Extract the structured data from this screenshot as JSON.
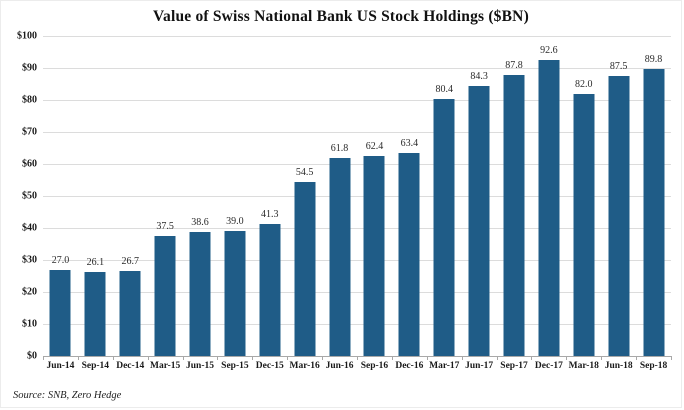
{
  "title": "Value of Swiss National Bank US Stock Holdings ($BN)",
  "source_note": "Source: SNB, Zero Hedge",
  "colors": {
    "bar": "#1f5c87",
    "gridline": "#dcdcdc",
    "baseline": "#a8a8a8",
    "text": "#1a1a1a"
  },
  "chart_data": {
    "type": "bar",
    "title": "Value of Swiss National Bank US Stock Holdings ($BN)",
    "categories": [
      "Jun-14",
      "Sep-14",
      "Dec-14",
      "Mar-15",
      "Jun-15",
      "Sep-15",
      "Dec-15",
      "Mar-16",
      "Jun-16",
      "Sep-16",
      "Dec-16",
      "Mar-17",
      "Jun-17",
      "Sep-17",
      "Dec-17",
      "Mar-18",
      "Jun-18",
      "Sep-18"
    ],
    "values": [
      27.0,
      26.1,
      26.7,
      37.5,
      38.6,
      39.0,
      41.3,
      54.5,
      61.8,
      62.4,
      63.4,
      80.4,
      84.3,
      87.8,
      92.6,
      82.0,
      87.5,
      89.8
    ],
    "value_labels": [
      "27.0",
      "26.1",
      "26.7",
      "37.5",
      "38.6",
      "39.0",
      "41.3",
      "54.5",
      "61.8",
      "62.4",
      "63.4",
      "80.4",
      "84.3",
      "87.8",
      "92.6",
      "82.0",
      "87.5",
      "89.8"
    ],
    "xlabel": "",
    "ylabel": "",
    "ylim": [
      0,
      100
    ],
    "ytick_labels": [
      "$100",
      "$90",
      "$80",
      "$70",
      "$60",
      "$50",
      "$40",
      "$30",
      "$20",
      "$10",
      "$0"
    ],
    "grid": true,
    "legend": false,
    "bar_color": "#1f5c87",
    "annotation": "Source: SNB, Zero Hedge"
  }
}
